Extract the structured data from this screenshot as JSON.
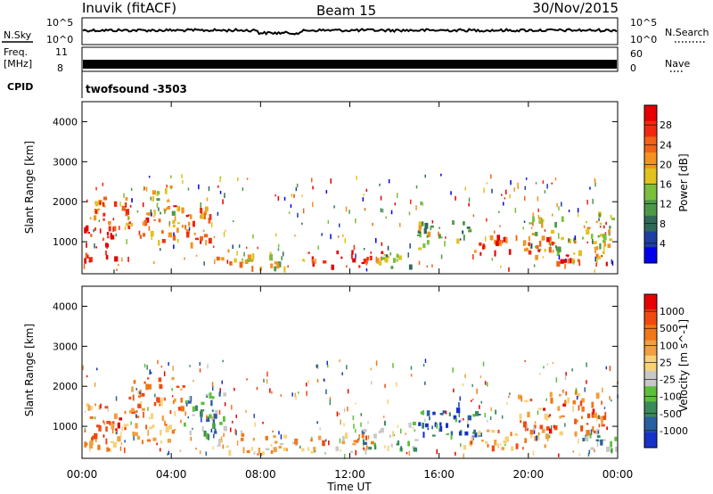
{
  "header": {
    "station": "Inuvik (fitACF)",
    "beam": "Beam 15",
    "date": "30/Nov/2015"
  },
  "top_panels": {
    "nsky_label": "N.Sky",
    "nsky_ticks": [
      "10^5",
      "10^0"
    ],
    "nsearch_label": "N.Search",
    "nsearch_ticks": [
      "10^5",
      "10^0"
    ],
    "freq_label_1": "Freq.",
    "freq_label_2": "[MHz]",
    "freq_ticks": [
      "11",
      "8"
    ],
    "nave_label": "Nave",
    "nave_ticks": [
      "60",
      "0"
    ],
    "cpid_label": "CPID",
    "cpid_value": "twofsound -3503"
  },
  "x_axis": {
    "label": "Time UT",
    "ticks": [
      "00:00",
      "04:00",
      "08:00",
      "12:00",
      "16:00",
      "20:00",
      "00:00"
    ]
  },
  "chart_data": [
    {
      "type": "heatmap",
      "name": "power",
      "ylabel": "Slant Range [km]",
      "yticks": [
        "4000",
        "3000",
        "2000",
        "1000"
      ],
      "ylim": [
        200,
        4500
      ],
      "xlim_hours": [
        0,
        24
      ],
      "colorbar_label": "Power [dB]",
      "colorbar_ticks": [
        "28",
        "24",
        "20",
        "16",
        "12",
        "8",
        "4"
      ],
      "colors": [
        "#0000ee",
        "#1e3fa0",
        "#2f6a58",
        "#4c9a48",
        "#7bbf3c",
        "#e2c21e",
        "#f29320",
        "#f06418",
        "#f02a10",
        "#e60000"
      ],
      "regions": [
        {
          "t0": 0.0,
          "t1": 1.6,
          "r0": 500,
          "r1": 1350,
          "level": 0.95
        },
        {
          "t0": 0.3,
          "t1": 2.3,
          "r0": 1300,
          "r1": 2100,
          "level": 0.7
        },
        {
          "t0": 2.5,
          "t1": 5.8,
          "r0": 900,
          "r1": 1900,
          "level": 0.75
        },
        {
          "t0": 3.0,
          "t1": 4.2,
          "r0": 1700,
          "r1": 2400,
          "level": 0.55
        },
        {
          "t0": 6.0,
          "t1": 8.5,
          "r0": 300,
          "r1": 800,
          "level": 0.6
        },
        {
          "t0": 10.0,
          "t1": 13.5,
          "r0": 350,
          "r1": 750,
          "level": 0.85
        },
        {
          "t0": 8.5,
          "t1": 10.0,
          "r0": 300,
          "r1": 600,
          "level": 0.5
        },
        {
          "t0": 15.0,
          "t1": 17.5,
          "r0": 800,
          "r1": 1500,
          "level": 0.45
        },
        {
          "t0": 17.5,
          "t1": 21.5,
          "r0": 600,
          "r1": 1100,
          "level": 0.8
        },
        {
          "t0": 20.0,
          "t1": 23.8,
          "r0": 700,
          "r1": 1700,
          "level": 0.55
        },
        {
          "t0": 13.0,
          "t1": 15.0,
          "r0": 350,
          "r1": 700,
          "level": 0.4
        },
        {
          "t0": 21.0,
          "t1": 23.5,
          "r0": 350,
          "r1": 700,
          "level": 0.75
        }
      ]
    },
    {
      "type": "heatmap",
      "name": "velocity",
      "ylabel": "Slant Range [km]",
      "yticks": [
        "4000",
        "3000",
        "2000",
        "1000"
      ],
      "ylim": [
        200,
        4500
      ],
      "xlim_hours": [
        0,
        24
      ],
      "colorbar_label": "Velocity [m s^-1]",
      "colorbar_ticks": [
        "1000",
        "500",
        "100",
        "25",
        "-25",
        "-100",
        "-500",
        "-1000"
      ],
      "colors": [
        "#1632c8",
        "#2a5fa0",
        "#3b8a5a",
        "#5cbf3c",
        "#c8c8c8",
        "#f6d27a",
        "#f0a040",
        "#f07818",
        "#f04a10",
        "#e60000"
      ],
      "regions": [
        {
          "t0": 0.0,
          "t1": 2.0,
          "r0": 400,
          "r1": 1600,
          "level": 0.75
        },
        {
          "t0": 2.0,
          "t1": 4.5,
          "r0": 600,
          "r1": 2200,
          "level": 0.7
        },
        {
          "t0": 4.5,
          "t1": 6.5,
          "r0": 700,
          "r1": 1800,
          "level": 0.3
        },
        {
          "t0": 6.0,
          "t1": 9.0,
          "r0": 300,
          "r1": 900,
          "level": 0.6
        },
        {
          "t0": 9.0,
          "t1": 13.0,
          "r0": 350,
          "r1": 800,
          "level": 0.65
        },
        {
          "t0": 12.5,
          "t1": 15.0,
          "r0": 400,
          "r1": 1100,
          "level": 0.35
        },
        {
          "t0": 15.0,
          "t1": 18.5,
          "r0": 700,
          "r1": 1400,
          "level": 0.15
        },
        {
          "t0": 17.0,
          "t1": 21.0,
          "r0": 400,
          "r1": 900,
          "level": 0.7
        },
        {
          "t0": 19.5,
          "t1": 23.5,
          "r0": 800,
          "r1": 1900,
          "level": 0.75
        },
        {
          "t0": 22.0,
          "t1": 24.0,
          "r0": 400,
          "r1": 900,
          "level": 0.3
        }
      ]
    }
  ]
}
